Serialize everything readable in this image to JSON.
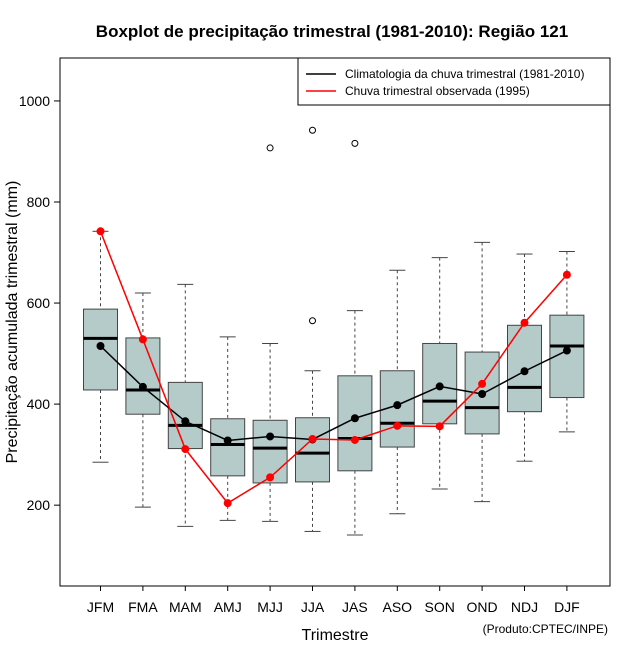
{
  "chart_data": {
    "type": "boxplot",
    "title": "Boxplot de precipitação trimestral (1981-2010): Região 121",
    "xlabel": "Trimestre",
    "ylabel": "Precipitação acumulada trimestral (mm)",
    "credit": "(Produto:CPTEC/INPE)",
    "ylim": [
      40,
      1085
    ],
    "yticks": [
      200,
      400,
      600,
      800,
      1000
    ],
    "categories": [
      "JFM",
      "FMA",
      "MAM",
      "AMJ",
      "MJJ",
      "JJA",
      "JAS",
      "ASO",
      "SON",
      "OND",
      "NDJ",
      "DJF"
    ],
    "boxes": [
      {
        "min": 285,
        "q1": 428,
        "median": 530,
        "q3": 588,
        "max": 742,
        "outliers": []
      },
      {
        "min": 196,
        "q1": 380,
        "median": 428,
        "q3": 531,
        "max": 620,
        "outliers": []
      },
      {
        "min": 158,
        "q1": 312,
        "median": 358,
        "q3": 443,
        "max": 637,
        "outliers": []
      },
      {
        "min": 170,
        "q1": 258,
        "median": 320,
        "q3": 371,
        "max": 533,
        "outliers": []
      },
      {
        "min": 168,
        "q1": 244,
        "median": 313,
        "q3": 368,
        "max": 520,
        "outliers": [
          907
        ]
      },
      {
        "min": 148,
        "q1": 246,
        "median": 303,
        "q3": 373,
        "max": 466,
        "outliers": [
          942,
          565
        ]
      },
      {
        "min": 141,
        "q1": 268,
        "median": 332,
        "q3": 456,
        "max": 585,
        "outliers": [
          916
        ]
      },
      {
        "min": 183,
        "q1": 315,
        "median": 362,
        "q3": 466,
        "max": 665,
        "outliers": []
      },
      {
        "min": 232,
        "q1": 361,
        "median": 406,
        "q3": 520,
        "max": 690,
        "outliers": []
      },
      {
        "min": 207,
        "q1": 341,
        "median": 393,
        "q3": 503,
        "max": 720,
        "outliers": []
      },
      {
        "min": 287,
        "q1": 385,
        "median": 433,
        "q3": 556,
        "max": 697,
        "outliers": []
      },
      {
        "min": 345,
        "q1": 413,
        "median": 515,
        "q3": 576,
        "max": 702,
        "outliers": []
      }
    ],
    "series": [
      {
        "name": "Climatologia da chuva trimestral (1981-2010)",
        "color": "#000000",
        "values": [
          515,
          434,
          366,
          328,
          336,
          330,
          372,
          398,
          435,
          420,
          465,
          506
        ]
      },
      {
        "name": "Chuva trimestral observada (1995)",
        "color": "#ff0000",
        "values": [
          742,
          528,
          311,
          204,
          255,
          331,
          329,
          357,
          356,
          440,
          561,
          656
        ]
      }
    ],
    "colors": {
      "box_fill": "#b4cbca",
      "box_stroke": "#444444",
      "axis": "#000000"
    }
  }
}
